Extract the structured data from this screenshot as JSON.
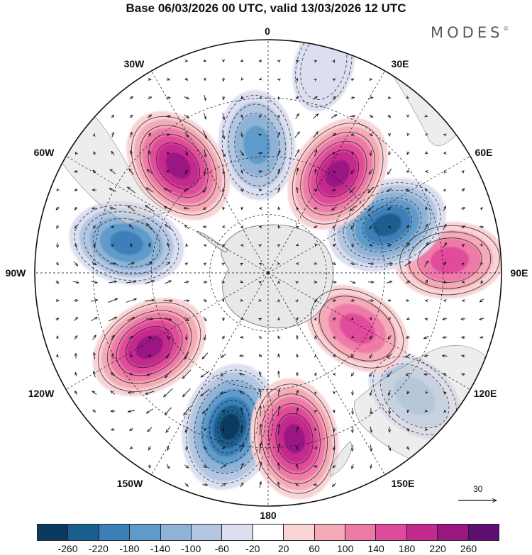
{
  "title": "Base 06/03/2026 00 UTC, valid 13/03/2026 12 UTC",
  "brand": "MODES",
  "brand_mark": "©",
  "longitude_labels": {
    "lon_0": "0",
    "lon_30e": "30E",
    "lon_60e": "60E",
    "lon_90e": "90E",
    "lon_120e": "120E",
    "lon_150e": "150E",
    "lon_180": "180",
    "lon_150w": "150W",
    "lon_120w": "120W",
    "lon_90w": "90W",
    "lon_60w": "60W",
    "lon_30w": "30W"
  },
  "reference_vector": {
    "value": "30"
  },
  "colorbar": {
    "colors": [
      "#0b3a5e",
      "#1a5f8e",
      "#3d7fb8",
      "#5e9bcb",
      "#8fb3d6",
      "#b3c7e3",
      "#dcdff0",
      "#ffffff",
      "#f9d3d5",
      "#f4aab7",
      "#ee7aa8",
      "#e04c9c",
      "#c42a8e",
      "#9a1782",
      "#5e0d72"
    ],
    "ticks": [
      "-260",
      "-220",
      "-180",
      "-140",
      "-100",
      "-60",
      "-20",
      "20",
      "60",
      "100",
      "140",
      "180",
      "220",
      "260"
    ]
  },
  "anomalies": [
    {
      "name": "anomaly-south-atlantic-negative",
      "lon": -5,
      "r": 0.55,
      "value": -160
    },
    {
      "name": "anomaly-south-america-positive",
      "lon": -40,
      "r": 0.6,
      "value": 230
    },
    {
      "name": "anomaly-southeast-pacific-negative",
      "lon": -78,
      "r": 0.62,
      "value": -200
    },
    {
      "name": "anomaly-south-pacific-positive",
      "lon": -122,
      "r": 0.6,
      "value": 240
    },
    {
      "name": "anomaly-central-pacific-negative",
      "lon": -166,
      "r": 0.68,
      "value": -270
    },
    {
      "name": "anomaly-tasman-positive",
      "lon": 171,
      "r": 0.72,
      "value": 220
    },
    {
      "name": "anomaly-australia-negative",
      "lon": 130,
      "r": 0.82,
      "value": -110
    },
    {
      "name": "anomaly-southern-ocean-positive",
      "lon": 122,
      "r": 0.45,
      "value": 140
    },
    {
      "name": "anomaly-indian-ocean-east-positive",
      "lon": 86,
      "r": 0.78,
      "value": 160
    },
    {
      "name": "anomaly-indian-ocean-negative",
      "lon": 68,
      "r": 0.55,
      "value": -230
    },
    {
      "name": "anomaly-south-indian-positive",
      "lon": 35,
      "r": 0.52,
      "value": 240
    },
    {
      "name": "anomaly-africa-negative",
      "lon": 15,
      "r": 0.92,
      "value": -40
    }
  ]
}
